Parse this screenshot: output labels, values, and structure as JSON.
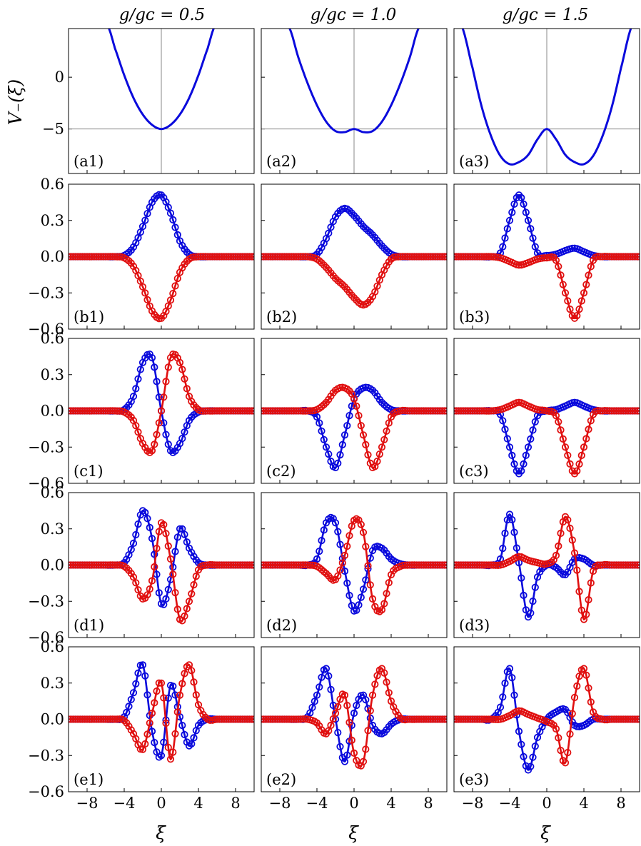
{
  "column_titles": [
    "g/gᴄ = 0.5",
    "g/gᴄ = 1.0",
    "g/gᴄ = 1.5"
  ],
  "row_a_ylabel": "V₋(ξ)",
  "xlabel": "ξ",
  "colors": {
    "blue": "#0a0adc",
    "red": "#e01010",
    "reference_line": "#888888"
  },
  "chart_data": {
    "type": "line",
    "grid": false,
    "layout": "5 rows x 3 columns of panels; x axis shared per column, y axis shared per row",
    "xlim": [
      -10,
      10
    ],
    "xticks": [
      -8,
      -4,
      0,
      4,
      8
    ],
    "xtick_labels": [
      "−8",
      "−4",
      "0",
      "4",
      "8"
    ],
    "g_over_gc": [
      0.5,
      1.0,
      1.5
    ],
    "potential_row": {
      "ylim": [
        -9.3,
        4.7
      ],
      "yticks": [
        0,
        -5
      ],
      "ytick_labels": [
        "0",
        "−5"
      ],
      "reference_lines": {
        "x": 0,
        "y": -5
      },
      "series_color": "blue",
      "panels": [
        {
          "label": "(a1)",
          "g_over_gc": 0.5,
          "shape": "single well",
          "x": [
            -5.8,
            -5,
            -4,
            -3,
            -2,
            -1,
            0,
            1,
            2,
            3,
            4,
            5,
            5.8
          ],
          "y": [
            5,
            2.8,
            0.2,
            -2,
            -3.6,
            -4.6,
            -5,
            -4.6,
            -3.6,
            -2,
            0.2,
            2.8,
            5
          ]
        },
        {
          "label": "(a2)",
          "g_over_gc": 1.0,
          "shape": "flat double well",
          "x": [
            -7,
            -6,
            -5,
            -4,
            -3,
            -2,
            -1,
            0,
            1,
            2,
            3,
            4,
            5,
            6,
            7
          ],
          "y": [
            4.8,
            1.9,
            -0.6,
            -2.7,
            -4.3,
            -5.2,
            -5.3,
            -5,
            -5.3,
            -5.2,
            -4.3,
            -2.7,
            -0.6,
            1.9,
            4.8
          ]
        },
        {
          "label": "(a3)",
          "g_over_gc": 1.5,
          "shape": "double well",
          "x": [
            -9.2,
            -8,
            -7,
            -6,
            -5,
            -4,
            -3,
            -2,
            -1,
            0,
            1,
            2,
            3,
            4,
            5,
            6,
            7,
            8,
            9.2
          ],
          "y": [
            5,
            0.9,
            -2.9,
            -5.7,
            -7.6,
            -8.4,
            -8.2,
            -7.5,
            -6,
            -5,
            -6,
            -7.5,
            -8.2,
            -8.4,
            -7.6,
            -5.7,
            -2.9,
            0.9,
            5
          ]
        }
      ]
    },
    "wavefunction_rows": {
      "ylim": [
        -0.6,
        0.6
      ],
      "yticks": [
        0.6,
        0.3,
        0.0,
        -0.3,
        -0.6
      ],
      "ytick_labels": [
        "0.6",
        "0.3",
        "0.0",
        "−0.3",
        "−0.6"
      ],
      "marker": "open circle on line",
      "series_colors": [
        "blue",
        "red"
      ],
      "x": [
        -10,
        -9,
        -8,
        -7,
        -6,
        -5,
        -4,
        -3,
        -2,
        -1,
        0,
        1,
        2,
        3,
        4,
        5,
        6,
        7,
        8,
        9,
        10
      ],
      "panels": [
        {
          "label": "(b1)",
          "row": "b",
          "g_over_gc": 0.5,
          "blue": [
            0,
            0,
            0,
            0,
            0,
            0,
            0.01,
            0.08,
            0.25,
            0.45,
            0.51,
            0.36,
            0.13,
            0.02,
            0,
            0,
            0,
            0,
            0,
            0,
            0
          ],
          "red": [
            0,
            0,
            0,
            0,
            0,
            0,
            -0.01,
            -0.08,
            -0.25,
            -0.45,
            -0.51,
            -0.36,
            -0.13,
            -0.02,
            0,
            0,
            0,
            0,
            0,
            0,
            0
          ]
        },
        {
          "label": "(b2)",
          "row": "b",
          "g_over_gc": 1.0,
          "blue": [
            0,
            0,
            0,
            0,
            0,
            0,
            0.02,
            0.15,
            0.33,
            0.4,
            0.34,
            0.25,
            0.18,
            0.09,
            0.02,
            0,
            0,
            0,
            0,
            0,
            0
          ],
          "red": [
            0,
            0,
            0,
            0,
            0,
            0,
            -0.02,
            -0.09,
            -0.18,
            -0.25,
            -0.34,
            -0.4,
            -0.33,
            -0.15,
            -0.02,
            0,
            0,
            0,
            0,
            0,
            0
          ]
        },
        {
          "label": "(b3)",
          "row": "b",
          "g_over_gc": 1.5,
          "blue": [
            0,
            0,
            0,
            0,
            0,
            0.03,
            0.3,
            0.51,
            0.3,
            0.03,
            0.01,
            0.02,
            0.05,
            0.07,
            0.04,
            0.01,
            0,
            0,
            0,
            0,
            0
          ],
          "red": [
            0,
            0,
            0,
            0,
            0,
            -0.01,
            -0.04,
            -0.07,
            -0.05,
            -0.02,
            -0.01,
            -0.03,
            -0.3,
            -0.51,
            -0.3,
            -0.03,
            0,
            0,
            0,
            0,
            0
          ]
        },
        {
          "label": "(c1)",
          "row": "c",
          "g_over_gc": 0.5,
          "blue": [
            0,
            0,
            0,
            0,
            0,
            0,
            0.01,
            0.12,
            0.4,
            0.44,
            0,
            -0.33,
            -0.27,
            -0.08,
            -0.01,
            0,
            0,
            0,
            0,
            0,
            0
          ],
          "red": [
            0,
            0,
            0,
            0,
            0,
            0,
            -0.01,
            -0.08,
            -0.27,
            -0.33,
            0,
            0.44,
            0.4,
            0.12,
            0.01,
            0,
            0,
            0,
            0,
            0,
            0
          ]
        },
        {
          "label": "(c2)",
          "row": "c",
          "g_over_gc": 1.0,
          "blue": [
            0,
            0,
            0,
            0,
            0,
            0,
            -0.05,
            -0.3,
            -0.47,
            -0.2,
            0.1,
            0.19,
            0.17,
            0.07,
            0.01,
            0,
            0,
            0,
            0,
            0,
            0
          ],
          "red": [
            0,
            0,
            0,
            0,
            0,
            0,
            0.01,
            0.07,
            0.17,
            0.19,
            0.1,
            -0.2,
            -0.47,
            -0.3,
            -0.05,
            0,
            0,
            0,
            0,
            0,
            0
          ]
        },
        {
          "label": "(c3)",
          "row": "c",
          "g_over_gc": 1.5,
          "blue": [
            0,
            0,
            0,
            0,
            0,
            -0.03,
            -0.3,
            -0.52,
            -0.3,
            -0.04,
            0,
            0.01,
            0.04,
            0.07,
            0.04,
            0.01,
            0,
            0,
            0,
            0,
            0
          ],
          "red": [
            0,
            0,
            0,
            0,
            0,
            0.01,
            0.04,
            0.07,
            0.04,
            0.01,
            0,
            -0.04,
            -0.3,
            -0.52,
            -0.3,
            -0.03,
            0,
            0,
            0,
            0,
            0
          ]
        },
        {
          "label": "(d1)",
          "row": "d",
          "g_over_gc": 0.5,
          "blue": [
            0,
            0,
            0,
            0,
            0,
            0,
            0.02,
            0.18,
            0.45,
            0.22,
            -0.32,
            -0.12,
            0.3,
            0.14,
            0.02,
            0,
            0,
            0,
            0,
            0,
            0
          ],
          "red": [
            0,
            0,
            0,
            0,
            0,
            0,
            -0.01,
            -0.1,
            -0.28,
            -0.13,
            0.35,
            0.05,
            -0.45,
            -0.3,
            -0.04,
            0,
            0,
            0,
            0,
            0,
            0
          ]
        },
        {
          "label": "(d2)",
          "row": "d",
          "g_over_gc": 1.0,
          "blue": [
            0,
            0,
            0,
            0,
            0,
            0,
            0.05,
            0.35,
            0.35,
            -0.05,
            -0.38,
            -0.2,
            0.12,
            0.14,
            0.05,
            0.01,
            0,
            0,
            0,
            0,
            0
          ],
          "red": [
            0,
            0,
            0,
            0,
            0,
            0,
            -0.01,
            -0.07,
            -0.12,
            0.08,
            0.37,
            0.27,
            -0.28,
            -0.37,
            -0.08,
            -0.01,
            0,
            0,
            0,
            0,
            0
          ]
        },
        {
          "label": "(d3)",
          "row": "d",
          "g_over_gc": 1.5,
          "blue": [
            0,
            0,
            0,
            0,
            0,
            0.05,
            0.42,
            0.02,
            -0.43,
            -0.1,
            0,
            -0.02,
            -0.08,
            0.05,
            0.05,
            0,
            0,
            0,
            0,
            0,
            0
          ],
          "red": [
            0,
            0,
            0,
            0,
            0,
            0,
            0.03,
            0.07,
            0.04,
            0.02,
            0.01,
            0.08,
            0.4,
            0.1,
            -0.45,
            -0.05,
            0,
            0,
            0,
            0,
            0
          ]
        },
        {
          "label": "(e1)",
          "row": "e",
          "g_over_gc": 0.5,
          "blue": [
            0,
            0,
            0,
            0,
            0,
            0,
            0.02,
            0.22,
            0.45,
            -0.1,
            -0.3,
            0.28,
            0.02,
            -0.22,
            -0.05,
            0,
            0,
            0,
            0,
            0,
            0
          ],
          "red": [
            0,
            0,
            0,
            0,
            0,
            0,
            -0.01,
            -0.12,
            -0.25,
            0.05,
            0.3,
            -0.33,
            0.2,
            0.45,
            0.12,
            0,
            0,
            0,
            0,
            0,
            0
          ]
        },
        {
          "label": "(e2)",
          "row": "e",
          "g_over_gc": 1.0,
          "blue": [
            0,
            0,
            0,
            0,
            0,
            0.02,
            0.2,
            0.42,
            0,
            -0.35,
            0.05,
            0.2,
            -0.05,
            -0.12,
            -0.04,
            0,
            0,
            0,
            0,
            0,
            0
          ],
          "red": [
            0,
            0,
            0,
            0,
            0,
            0,
            -0.03,
            -0.12,
            0.05,
            0.2,
            -0.28,
            -0.35,
            0.2,
            0.42,
            0.15,
            0.01,
            0,
            0,
            0,
            0,
            0
          ]
        },
        {
          "label": "(e3)",
          "row": "e",
          "g_over_gc": 1.5,
          "blue": [
            0,
            0,
            0,
            0,
            0,
            0.1,
            0.42,
            -0.1,
            -0.42,
            -0.15,
            0,
            0.06,
            0.08,
            -0.05,
            -0.05,
            0,
            0,
            0,
            0,
            0,
            0
          ],
          "red": [
            0,
            0,
            0,
            0,
            0,
            0,
            0.03,
            0.07,
            0.04,
            0.01,
            -0.02,
            -0.08,
            -0.36,
            0.18,
            0.42,
            0.06,
            0,
            0,
            0,
            0,
            0
          ]
        }
      ]
    }
  }
}
